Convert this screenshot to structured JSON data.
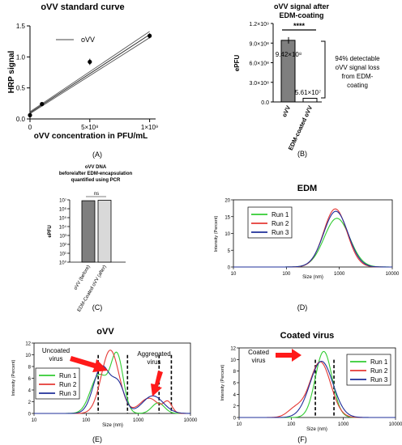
{
  "panels": {
    "A": {
      "label": "(A)"
    },
    "B": {
      "label": "(B)"
    },
    "C": {
      "label": "(C)"
    },
    "D": {
      "label": "(D)"
    },
    "E": {
      "label": "(E)"
    },
    "F": {
      "label": "(F)"
    }
  },
  "chart_data": [
    {
      "id": "A",
      "type": "scatter",
      "title": "oVV standard curve",
      "xlabel": "oVV concentration in PFU/mL",
      "ylabel": "HRP signal",
      "xlim": [
        0,
        1050000000
      ],
      "ylim": [
        0,
        1.5
      ],
      "x_ticks": [
        0,
        500000000,
        1000000000
      ],
      "x_tick_labels": [
        "0",
        "5×10⁸",
        "1×10⁹"
      ],
      "y_ticks": [
        0.0,
        0.5,
        1.0,
        1.5
      ],
      "y_tick_labels": [
        "0.0",
        "0.5",
        "1.0",
        "1.5"
      ],
      "legend": [
        "oVV"
      ],
      "legend_position": "top-left",
      "points": [
        {
          "x": 0,
          "y": 0.06,
          "err": 0.02
        },
        {
          "x": 100000000,
          "y": 0.24,
          "err": 0.03
        },
        {
          "x": 500000000,
          "y": 0.92,
          "err": 0.05
        },
        {
          "x": 1000000000,
          "y": 1.34,
          "err": 0.04
        }
      ],
      "fit_line": [
        {
          "x": 0,
          "y": 0.1
        },
        {
          "x": 1000000000,
          "y": 1.36
        }
      ]
    },
    {
      "id": "B",
      "type": "bar",
      "title": "oVV signal after EDM-coating",
      "ylabel": "ePFU",
      "categories": [
        "oVV",
        "EDM-coated oVV"
      ],
      "values": [
        942000000,
        56100000
      ],
      "colors": [
        "#7f7f7f",
        "#ffffff"
      ],
      "ylim": [
        0,
        1200000000
      ],
      "y_ticks": [
        0,
        300000000,
        600000000,
        900000000,
        1200000000
      ],
      "y_tick_labels": [
        "0.0",
        "3.0×10⁸",
        "6.0×10⁸",
        "9.0×10⁸",
        "1.2×10⁹"
      ],
      "value_labels": [
        "9.42×10⁸",
        "5.61×10⁷"
      ],
      "significance": "****",
      "annotation": [
        "94% detectable",
        "oVV signal loss",
        "from EDM-",
        "coating"
      ]
    },
    {
      "id": "C",
      "type": "bar",
      "title_lines": [
        "oVV DNA",
        "before/after EDM-encapsulation",
        "quantified using PCR"
      ],
      "ylabel": "ePFU",
      "log_scale": true,
      "categories": [
        "oVV (before)",
        "EDM-Coated oVV (after)"
      ],
      "values": [
        8000000,
        9000000
      ],
      "colors": [
        "#7f7f7f",
        "#d9d9d9"
      ],
      "ylim": [
        1,
        10000000
      ],
      "y_tick_labels": [
        "10⁰",
        "10¹",
        "10²",
        "10³",
        "10⁴",
        "10⁵",
        "10⁶",
        "10⁷"
      ],
      "significance": "ns"
    },
    {
      "id": "D",
      "type": "line",
      "title": "EDM",
      "xlabel": "Size (nm)",
      "ylabel": "Intensity (Percent)",
      "x_log": true,
      "xlim": [
        10,
        10000
      ],
      "ylim": [
        0,
        20
      ],
      "x_tick_labels": [
        "10",
        "100",
        "1000",
        "10000"
      ],
      "y_tick_labels": [
        "0",
        "5",
        "10",
        "15",
        "20"
      ],
      "legend_position": "top-left",
      "series": [
        {
          "name": "Run 1",
          "color": "#33cc33",
          "peaks": [
            {
              "x": 900,
              "h": 14.5,
              "w": 0.24
            }
          ]
        },
        {
          "name": "Run 2",
          "color": "#e53935",
          "peaks": [
            {
              "x": 840,
              "h": 17.3,
              "w": 0.22
            }
          ]
        },
        {
          "name": "Run 3",
          "color": "#1f2f9a",
          "peaks": [
            {
              "x": 860,
              "h": 16.6,
              "w": 0.23
            }
          ]
        }
      ]
    },
    {
      "id": "E",
      "type": "line",
      "title": "oVV",
      "xlabel": "Size (nm)",
      "ylabel": "Intensity (Percent)",
      "x_log": true,
      "xlim": [
        10,
        10000
      ],
      "ylim": [
        0,
        12
      ],
      "x_tick_labels": [
        "10",
        "100",
        "1000",
        "10000"
      ],
      "y_tick_labels": [
        "0",
        "2",
        "4",
        "6",
        "8",
        "10",
        "12"
      ],
      "legend_position": "left",
      "dashed_lines_x": [
        170,
        620,
        2500,
        4300
      ],
      "annotations": [
        "Uncoated",
        "virus",
        "Aggregated",
        "virus"
      ],
      "series": [
        {
          "name": "Run 1",
          "color": "#33cc33",
          "peaks": [
            {
              "x": 175,
              "h": 6.5,
              "w": 0.16
            },
            {
              "x": 390,
              "h": 9.8,
              "w": 0.12
            },
            {
              "x": 2400,
              "h": 1.8,
              "w": 0.12
            }
          ]
        },
        {
          "name": "Run 2",
          "color": "#e53935",
          "peaks": [
            {
              "x": 290,
              "h": 10.8,
              "w": 0.17
            },
            {
              "x": 1600,
              "h": 2.6,
              "w": 0.18
            },
            {
              "x": 3700,
              "h": 1.8,
              "w": 0.08
            }
          ]
        },
        {
          "name": "Run 3",
          "color": "#1f2f9a",
          "peaks": [
            {
              "x": 200,
              "h": 8.0,
              "w": 0.16
            },
            {
              "x": 420,
              "h": 4.5,
              "w": 0.12
            },
            {
              "x": 1900,
              "h": 3.0,
              "w": 0.2
            }
          ]
        }
      ]
    },
    {
      "id": "F",
      "type": "line",
      "title": "Coated virus",
      "xlabel": "Size (nm)",
      "ylabel": "Intensity (Percent)",
      "x_log": true,
      "xlim": [
        10,
        10000
      ],
      "ylim": [
        0,
        12
      ],
      "x_tick_labels": [
        "10",
        "100",
        "1000",
        "10000"
      ],
      "y_tick_labels": [
        "0",
        "2",
        "4",
        "6",
        "8",
        "10",
        "12"
      ],
      "legend_position": "top-right",
      "dashed_lines_x": [
        290,
        660
      ],
      "annotations": [
        "Coated",
        "virus"
      ],
      "series": [
        {
          "name": "Run 1",
          "color": "#33cc33",
          "peaks": [
            {
              "x": 420,
              "h": 11.4,
              "w": 0.16
            }
          ]
        },
        {
          "name": "Run 2",
          "color": "#e53935",
          "peaks": [
            {
              "x": 360,
              "h": 9.6,
              "w": 0.2
            },
            {
              "x": 120,
              "h": 1.5,
              "w": 0.15
            }
          ]
        },
        {
          "name": "Run 3",
          "color": "#1f2f9a",
          "peaks": [
            {
              "x": 380,
              "h": 9.7,
              "w": 0.22
            }
          ]
        }
      ]
    }
  ]
}
